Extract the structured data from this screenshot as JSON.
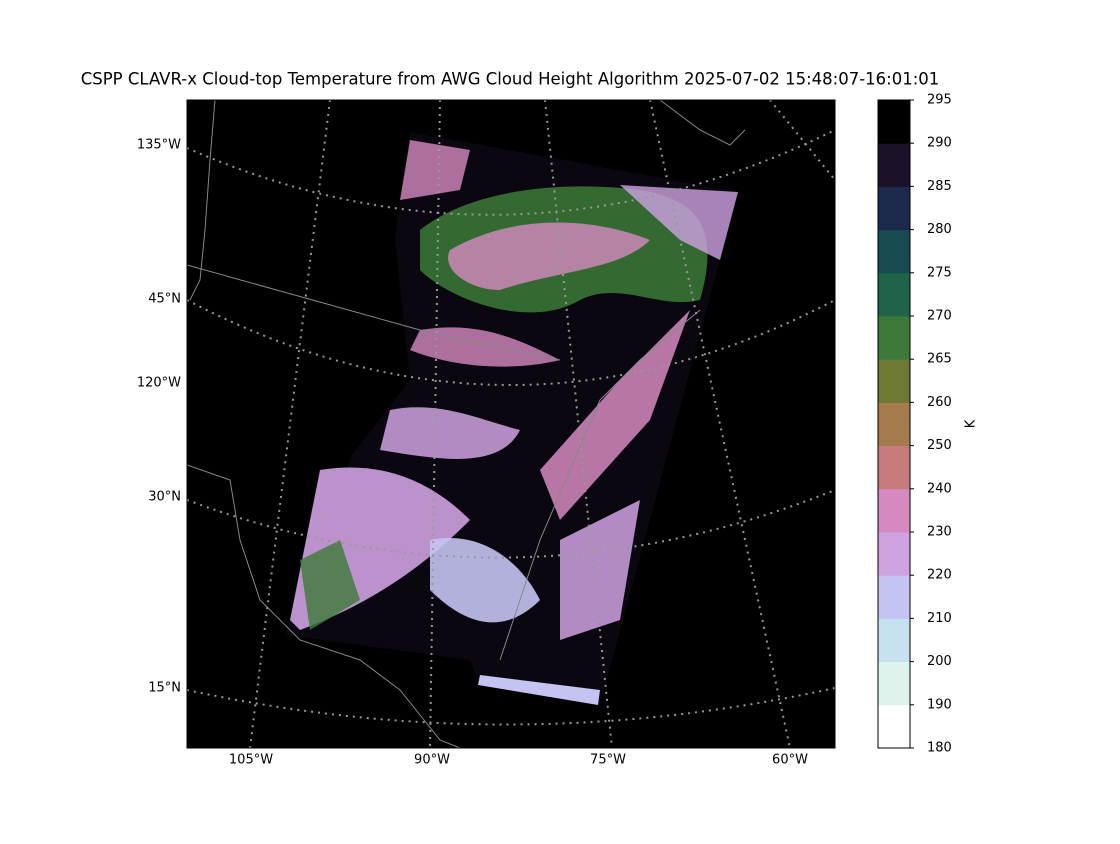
{
  "title": "CSPP CLAVR-x Cloud-top Temperature from AWG Cloud Height Algorithm 2025-07-02 15:48:07-16:01:01",
  "map": {
    "left_labels": [
      "135°W",
      "45°N",
      "120°W",
      "30°N",
      "15°N"
    ],
    "bottom_labels": [
      "105°W",
      "90°W",
      "75°W",
      "60°W"
    ]
  },
  "colorbar": {
    "label": "K",
    "ticks": [
      180,
      190,
      200,
      210,
      220,
      230,
      240,
      250,
      260,
      265,
      270,
      275,
      280,
      285,
      290,
      295
    ],
    "colors": [
      "#ffffff",
      "#dff3ec",
      "#c6e1f0",
      "#c4c4f2",
      "#cfa2e2",
      "#d689c0",
      "#c77a7a",
      "#a57a4c",
      "#6e7a34",
      "#3d7a38",
      "#1f6448",
      "#174a52",
      "#1c2a4c",
      "#1c1228",
      "#000000"
    ]
  }
}
